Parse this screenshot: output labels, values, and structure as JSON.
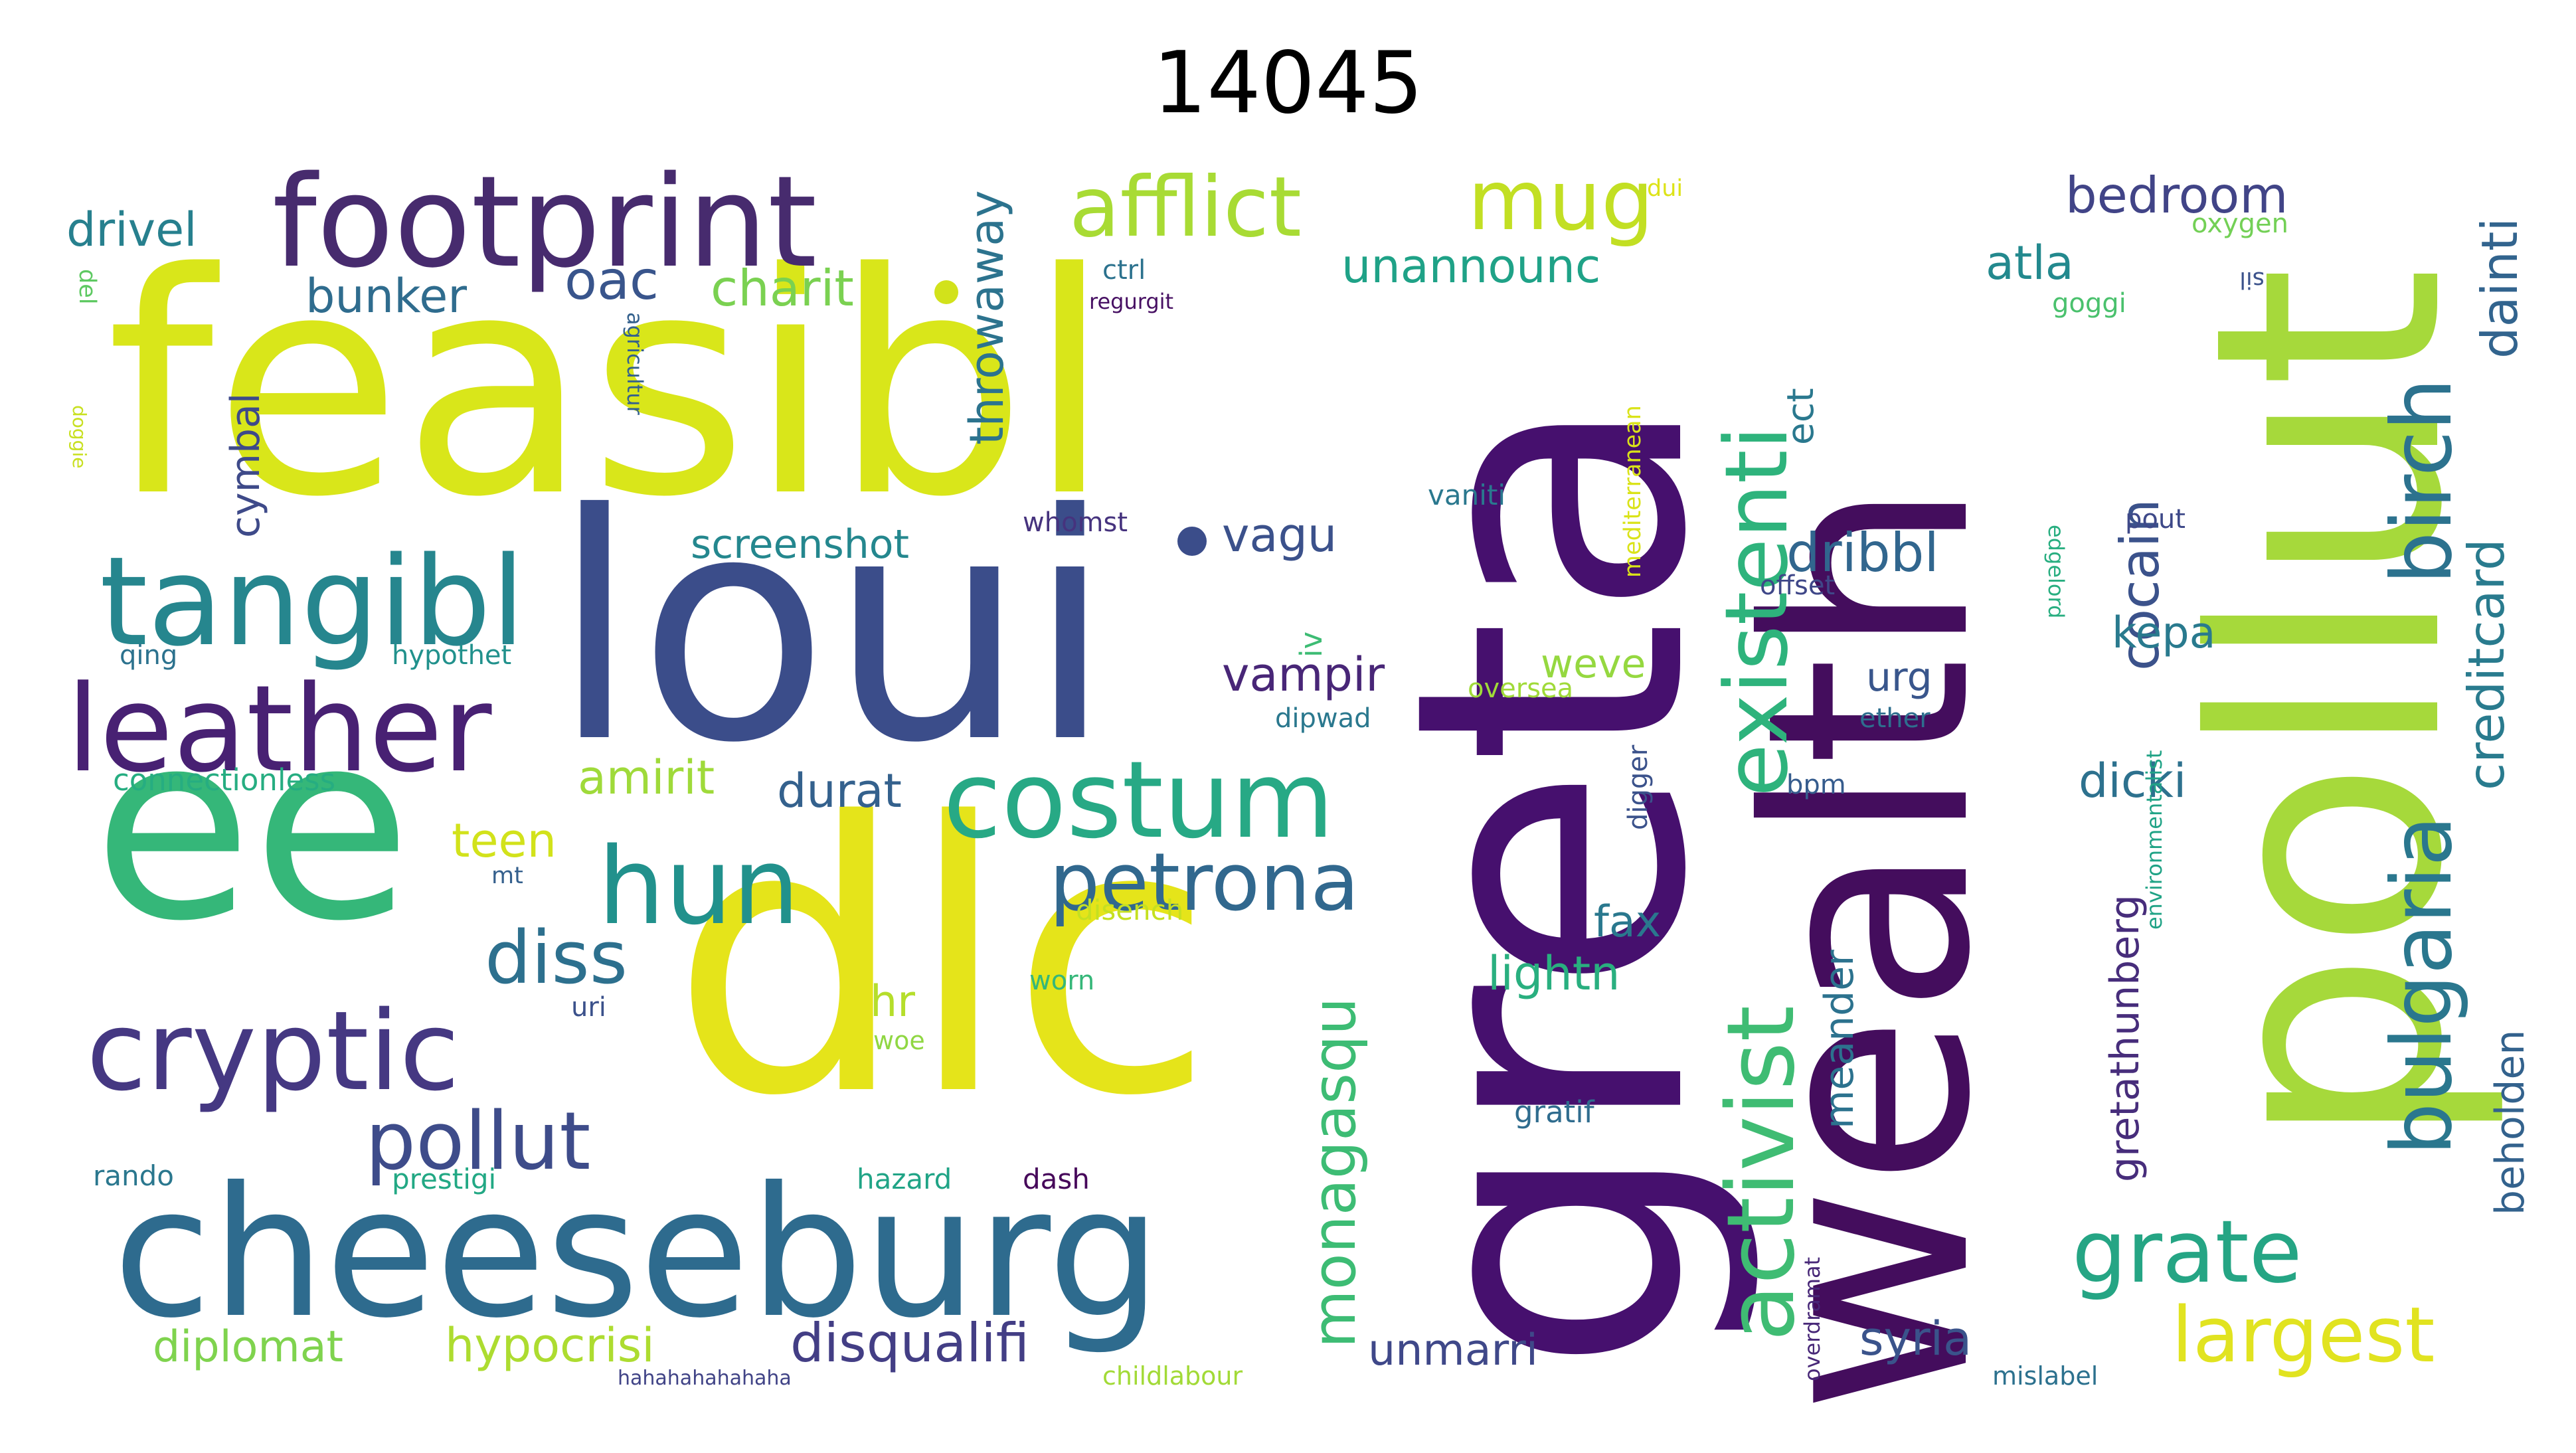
{
  "title": "14045",
  "words": [
    {
      "text": "feasibl",
      "color": "#d9e61a",
      "rot": 0
    },
    {
      "text": "loui",
      "color": "#3b4d8a",
      "rot": 0
    },
    {
      "text": "dlc",
      "color": "#e5e41a",
      "rot": 0
    },
    {
      "text": "ee",
      "color": "#35b779",
      "rot": 0
    },
    {
      "text": "greta",
      "color": "#46106e",
      "rot": -90
    },
    {
      "text": "wealth",
      "color": "#440d5d",
      "rot": -90
    },
    {
      "text": "pollut",
      "color": "#a6d93b",
      "rot": -90
    },
    {
      "text": "cheeseburg",
      "color": "#2e6b8e",
      "rot": 0
    },
    {
      "text": "footprint",
      "color": "#472b6e",
      "rot": 0
    },
    {
      "text": "tangibl",
      "color": "#26868e",
      "rot": 0
    },
    {
      "text": "leather",
      "color": "#482173",
      "rot": 0
    },
    {
      "text": "cryptic",
      "color": "#453882",
      "rot": 0
    },
    {
      "text": "hun",
      "color": "#21918c",
      "rot": 0
    },
    {
      "text": "costum",
      "color": "#27a985",
      "rot": 0
    },
    {
      "text": "petrona",
      "color": "#31688e",
      "rot": 0
    },
    {
      "text": "afflict",
      "color": "#a8db34",
      "rot": 0
    },
    {
      "text": "mug",
      "color": "#c2df23",
      "rot": 0
    },
    {
      "text": "existenti",
      "color": "#2eb37c",
      "rot": -90
    },
    {
      "text": "activist",
      "color": "#3fbc73",
      "rot": -90
    },
    {
      "text": "bulgaria",
      "color": "#2a778e",
      "rot": -90
    },
    {
      "text": "birch",
      "color": "#2c728e",
      "rot": -90
    },
    {
      "text": "grate",
      "color": "#25a584",
      "rot": 0
    },
    {
      "text": "largest",
      "color": "#e1e320",
      "rot": 0
    },
    {
      "text": "monagasqu",
      "color": "#3dbc74",
      "rot": -90
    },
    {
      "text": "pollut",
      "color": "#3e4c8a",
      "rot": 0
    },
    {
      "text": "diss",
      "color": "#2d708e",
      "rot": 0
    },
    {
      "text": "drivel",
      "color": "#27808e",
      "rot": 0
    },
    {
      "text": "bunker",
      "color": "#2f6c8e",
      "rot": 0
    },
    {
      "text": "oac",
      "color": "#39558c",
      "rot": 0
    },
    {
      "text": "charit",
      "color": "#7ad151",
      "rot": 0
    },
    {
      "text": "throwaway",
      "color": "#2c738e",
      "rot": -90
    },
    {
      "text": "unannounc",
      "color": "#1fa287",
      "rot": 0
    },
    {
      "text": "bedroom",
      "color": "#414487",
      "rot": 0
    },
    {
      "text": "atla",
      "color": "#23898e",
      "rot": 0
    },
    {
      "text": "cocain",
      "color": "#3b528b",
      "rot": -90
    },
    {
      "text": "creditcard",
      "color": "#297b8e",
      "rot": -90
    },
    {
      "text": "dainti",
      "color": "#32648e",
      "rot": -90
    },
    {
      "text": "cymbal",
      "color": "#3e4a89",
      "rot": -90
    },
    {
      "text": "screenshot",
      "color": "#24878e",
      "rot": 0
    },
    {
      "text": "vagu",
      "color": "#3b518b",
      "rot": 0
    },
    {
      "text": "dribbl",
      "color": "#31668e",
      "rot": 0
    },
    {
      "text": "kepa",
      "color": "#297a8e",
      "rot": 0
    },
    {
      "text": "vampir",
      "color": "#482677",
      "rot": 0
    },
    {
      "text": "weve",
      "color": "#95d840",
      "rot": 0
    },
    {
      "text": "urg",
      "color": "#39568c",
      "rot": 0
    },
    {
      "text": "amirit",
      "color": "#9fda3a",
      "rot": 0
    },
    {
      "text": "durat",
      "color": "#34618d",
      "rot": 0
    },
    {
      "text": "dicki",
      "color": "#2d718e",
      "rot": 0
    },
    {
      "text": "teen",
      "color": "#d2e21b",
      "rot": 0
    },
    {
      "text": "gretathunberg",
      "color": "#472d7b",
      "rot": -90
    },
    {
      "text": "beholden",
      "color": "#33628d",
      "rot": -90
    },
    {
      "text": "fax",
      "color": "#2a788e",
      "rot": 0
    },
    {
      "text": "lightn",
      "color": "#29af7f",
      "rot": 0
    },
    {
      "text": "hr",
      "color": "#b5de2b",
      "rot": 0
    },
    {
      "text": "meander",
      "color": "#2c728e",
      "rot": -90
    },
    {
      "text": "ect",
      "color": "#2a788e",
      "rot": -90
    },
    {
      "text": "diplomat",
      "color": "#7fd34e",
      "rot": 0
    },
    {
      "text": "hypocrisi",
      "color": "#addc30",
      "rot": 0
    },
    {
      "text": "disqualifi",
      "color": "#433e85",
      "rot": 0
    },
    {
      "text": "unmarri",
      "color": "#3f4889",
      "rot": 0
    },
    {
      "text": "syria",
      "color": "#3a538b",
      "rot": 0
    },
    {
      "text": "iv",
      "color": "#3dbc74",
      "rot": -90
    },
    {
      "text": "del",
      "color": "#5ec962",
      "rot": 90
    },
    {
      "text": "dui",
      "color": "#dde318",
      "rot": 0
    },
    {
      "text": "ctrl",
      "color": "#2c728e",
      "rot": 0
    },
    {
      "text": "regurgit",
      "color": "#471063",
      "rot": 0
    },
    {
      "text": "agricultur",
      "color": "#34618d",
      "rot": 90
    },
    {
      "text": "mediterranean",
      "color": "#dae319",
      "rot": -90
    },
    {
      "text": "oxygen",
      "color": "#73d056",
      "rot": 0
    },
    {
      "text": "sil",
      "color": "#3b528b",
      "rot": 180
    },
    {
      "text": "goggi",
      "color": "#4ac16d",
      "rot": 0
    },
    {
      "text": "doggie",
      "color": "#c8e020",
      "rot": 90
    },
    {
      "text": "vaniti",
      "color": "#2a788e",
      "rot": 0
    },
    {
      "text": "whomst",
      "color": "#46337e",
      "rot": 0
    },
    {
      "text": "pout",
      "color": "#3e4989",
      "rot": 0
    },
    {
      "text": "offset",
      "color": "#3f4788",
      "rot": 0
    },
    {
      "text": "edgelord",
      "color": "#28ae80",
      "rot": 90
    },
    {
      "text": "qing",
      "color": "#2c728e",
      "rot": 0
    },
    {
      "text": "hypothet",
      "color": "#21918c",
      "rot": 0
    },
    {
      "text": "oversea",
      "color": "#a0da39",
      "rot": 0
    },
    {
      "text": "dipwad",
      "color": "#2a788e",
      "rot": 0
    },
    {
      "text": "ether",
      "color": "#2e6e8e",
      "rot": 0
    },
    {
      "text": "connectionless",
      "color": "#26ad81",
      "rot": 0
    },
    {
      "text": "digger",
      "color": "#3b528b",
      "rot": -90
    },
    {
      "text": "bpm",
      "color": "#365c8d",
      "rot": 0
    },
    {
      "text": "environmentalist",
      "color": "#20a386",
      "rot": -90
    },
    {
      "text": "mt",
      "color": "#35608d",
      "rot": 0
    },
    {
      "text": "disench",
      "color": "#c5e021",
      "rot": 0
    },
    {
      "text": "worn",
      "color": "#35b779",
      "rot": 0
    },
    {
      "text": "uri",
      "color": "#3b518b",
      "rot": 0
    },
    {
      "text": "woe",
      "color": "#90d743",
      "rot": 0
    },
    {
      "text": "gratif",
      "color": "#2f6c8e",
      "rot": 0
    },
    {
      "text": "overdramat",
      "color": "#482878",
      "rot": -90
    },
    {
      "text": "rando",
      "color": "#2a778e",
      "rot": 0
    },
    {
      "text": "prestigi",
      "color": "#22a884",
      "rot": 0
    },
    {
      "text": "hazard",
      "color": "#20a486",
      "rot": 0
    },
    {
      "text": "dash",
      "color": "#46075a",
      "rot": 0
    },
    {
      "text": "mislabel",
      "color": "#2c718e",
      "rot": 0
    },
    {
      "text": "childlabour",
      "color": "#a2da37",
      "rot": 0
    },
    {
      "text": "hahahahahahaha",
      "color": "#414487",
      "rot": 0
    }
  ]
}
